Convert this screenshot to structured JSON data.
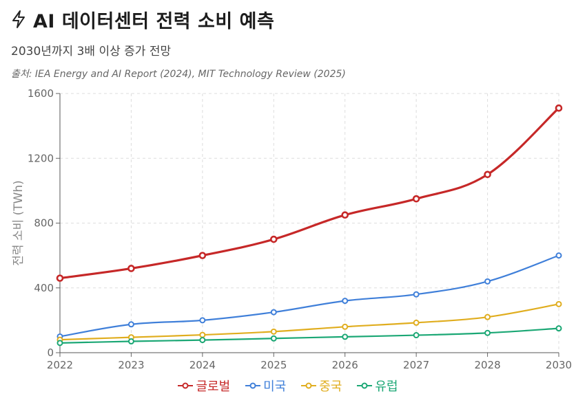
{
  "header": {
    "icon": "lightning-bolt-icon",
    "title": "AI 데이터센터 전력 소비 예측",
    "subtitle": "2030년까지 3배 이상 증가 전망",
    "source": "출처: IEA Energy and AI Report (2024), MIT Technology Review (2025)"
  },
  "chart_data": {
    "type": "line",
    "title": "AI 데이터센터 전력 소비 예측",
    "subtitle": "2030년까지 3배 이상 증가 전망",
    "xlabel": "",
    "ylabel": "전력 소비 (TWh)",
    "categories": [
      "2022",
      "2023",
      "2024",
      "2025",
      "2026",
      "2027",
      "2028",
      "2030"
    ],
    "ylim": [
      0,
      1600
    ],
    "yticks": [
      0,
      400,
      800,
      1200,
      1600
    ],
    "grid": true,
    "legend_position": "bottom",
    "series": [
      {
        "name": "글로벌",
        "color": "#c62828",
        "values": [
          460,
          520,
          600,
          700,
          850,
          950,
          1100,
          1510
        ]
      },
      {
        "name": "미국",
        "color": "#3f7fd9",
        "values": [
          100,
          175,
          200,
          250,
          320,
          360,
          440,
          600
        ]
      },
      {
        "name": "중국",
        "color": "#e0ad1e",
        "values": [
          80,
          95,
          110,
          130,
          160,
          185,
          220,
          300
        ]
      },
      {
        "name": "유럽",
        "color": "#1aa774",
        "values": [
          60,
          70,
          78,
          88,
          98,
          108,
          122,
          150
        ]
      }
    ]
  }
}
